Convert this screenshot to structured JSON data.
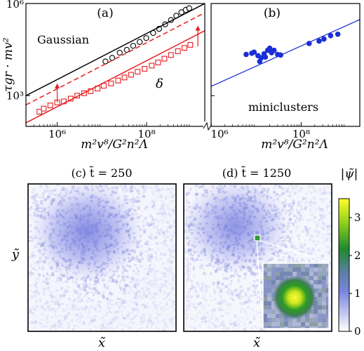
{
  "chart_data": [
    {
      "panel": "(a)",
      "type": "scatter",
      "xlabel": "m²v⁸/G²n²Λ",
      "ylabel": "τgr · mv²",
      "x_ticks": [
        "10⁶",
        "10⁸"
      ],
      "y_ticks": [
        "10⁶",
        "10³"
      ],
      "log_x": true,
      "log_y": true,
      "xlim": [
        200000,
        2000000000
      ],
      "ylim": [
        100,
        1000000
      ],
      "annotations": [
        "Gaussian",
        "δ"
      ],
      "series": [
        {
          "name": "Gaussian",
          "marker": "circle",
          "color": "#000000",
          "x": [
            12000000.0,
            17000000.0,
            25000000.0,
            36000000.0,
            50000000.0,
            70000000.0,
            98000000.0,
            140000000.0,
            190000000.0,
            260000000.0,
            350000000.0,
            460000000.0,
            600000000.0,
            750000000.0,
            900000000.0
          ],
          "y": [
            13000,
            17000,
            25000,
            31000,
            42000,
            56000,
            75000,
            110000,
            150000,
            210000,
            290000,
            400000,
            520000,
            620000,
            700000
          ]
        },
        {
          "name": "δ",
          "marker": "square",
          "color": "#e8191d",
          "x": [
            400000.0,
            500000.0,
            700000.0,
            1000000.0,
            1400000.0,
            2000000.0,
            2800000.0,
            4000000.0,
            5600000.0,
            8000000.0,
            11000000.0,
            16000000.0,
            23000000.0,
            32000000.0,
            45000000.0,
            63000000.0,
            90000000.0,
            130000000.0,
            180000000.0,
            250000000.0,
            350000000.0,
            500000000.0,
            700000000.0,
            950000000.0
          ],
          "y": [
            300,
            380,
            480,
            600,
            650,
            800,
            1000,
            1200,
            1400,
            1700,
            2100,
            2500,
            3100,
            3900,
            4800,
            6000,
            7500,
            9500,
            12000,
            16000,
            21000,
            28000,
            36000,
            45000
          ]
        },
        {
          "name": "Gaussian fit",
          "line": "solid",
          "color": "#000000",
          "x": [
            200000,
            2000000000
          ],
          "y": [
            1000,
            1000000
          ]
        },
        {
          "name": "δ fit (shifted)",
          "line": "dashed",
          "color": "#e8191d",
          "x": [
            200000,
            2000000000
          ],
          "y": [
            500,
            500000
          ]
        },
        {
          "name": "δ fit",
          "line": "solid",
          "color": "#e8191d",
          "x": [
            200000,
            2000000000
          ],
          "y": [
            130,
            130000
          ]
        }
      ],
      "arrows": [
        {
          "x": 1000000.0,
          "y_from": 600,
          "y_to": 2500
        },
        {
          "x": 1400000000.0,
          "y_from": 40000,
          "y_to": 190000
        }
      ]
    },
    {
      "panel": "(b)",
      "type": "scatter",
      "xlabel": "m²v⁸/G²n²Λ",
      "x_ticks": [
        "10⁶",
        "10⁸"
      ],
      "log_x": true,
      "log_y": true,
      "xlim": [
        1000000,
        2000000000
      ],
      "ylim": [
        100,
        1000000
      ],
      "annotations": [
        "miniclusters"
      ],
      "series": [
        {
          "name": "miniclusters",
          "marker": "filled-circle",
          "color": "#1a2fd6",
          "x": [
            6000000.0,
            8000000.0,
            9000000.0,
            11000000.0,
            12000000.0,
            13000000.0,
            15000000.0,
            16000000.0,
            18000000.0,
            20000000.0,
            22000000.0,
            25000000.0,
            30000000.0,
            35000000.0,
            150000000.0,
            250000000.0,
            320000000.0,
            450000000.0,
            650000000.0
          ],
          "y": [
            22000,
            24000,
            26000,
            20000,
            13000,
            17000,
            23000,
            18000,
            30000,
            35000,
            25000,
            30000,
            22000,
            21000,
            50000,
            60000,
            70000,
            90000,
            100000
          ]
        },
        {
          "name": "fit",
          "line": "solid",
          "color": "#1a2fd6",
          "x": [
            1000000,
            2000000000
          ],
          "y": [
            2000,
            300000
          ]
        }
      ]
    },
    {
      "panel": "(c)",
      "type": "heatmap",
      "title": "(c) t̃ = 250",
      "xlabel": "x̃",
      "ylabel": "ỹ"
    },
    {
      "panel": "(d)",
      "type": "heatmap",
      "title": "(d) t̃ = 1250",
      "xlabel": "x̃",
      "colorbar": {
        "label": "|ψ̃|",
        "ticks": [
          "3",
          "2",
          "1",
          "0"
        ],
        "range": [
          0,
          3.5
        ]
      }
    }
  ],
  "colors": {
    "black": "#000000",
    "red": "#e8191d",
    "blue": "#1a2fd6",
    "field": "#7f86e0"
  }
}
